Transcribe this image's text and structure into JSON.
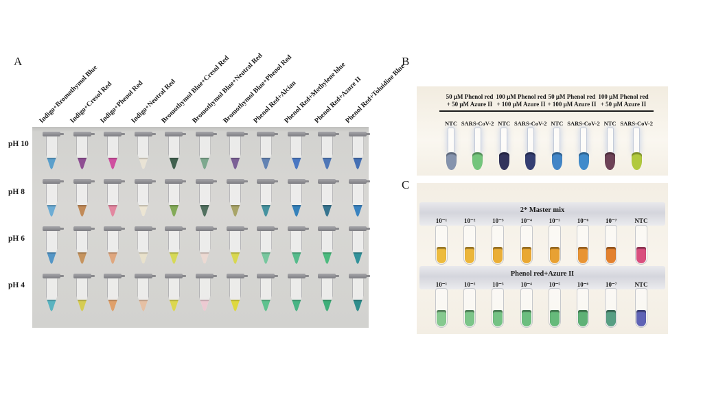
{
  "figure": {
    "panel_a": {
      "letter": "A",
      "column_labels": [
        "Indigo+Bromothymol Blue",
        "Indigo+Cresol Red",
        "Indigo+Phenol Red",
        "Indigo+Neutral Red",
        "Bromothymol Blue+Cresol Red",
        "Bromothymol Blue+Neutral Red",
        "Bromothymol Blue+Phenol Red",
        "Phenol Red+Alcian",
        "Phenol Red+Methylene blue",
        "Phenol Red+Azure II",
        "Phenol Red+Toluidine Blue"
      ],
      "rows": [
        {
          "ph": "pH 10",
          "colors": [
            "#5b9fcb",
            "#8f4f93",
            "#cf4fa0",
            "#e9e3d5",
            "#40604e",
            "#7da88e",
            "#7b6096",
            "#6383b3",
            "#4a77c2",
            "#4f77b7",
            "#4570b4"
          ]
        },
        {
          "ph": "pH 8",
          "colors": [
            "#6dacd4",
            "#c18a58",
            "#e287a0",
            "#ece5d3",
            "#83aa58",
            "#51705f",
            "#a8a468",
            "#46929f",
            "#3581ba",
            "#37748f",
            "#3a83c0"
          ]
        },
        {
          "ph": "pH 6",
          "colors": [
            "#5496c6",
            "#c6945f",
            "#dfa77f",
            "#e8e1cb",
            "#d6d957",
            "#ecd9d2",
            "#d8d750",
            "#77c79e",
            "#55bb8b",
            "#4cba7e",
            "#32929a"
          ]
        },
        {
          "ph": "pH 4",
          "colors": [
            "#5ab3c0",
            "#d5cc52",
            "#dfa06b",
            "#e5c0a4",
            "#dcd74f",
            "#eccad2",
            "#ded83f",
            "#5fc28e",
            "#48b484",
            "#3fae79",
            "#2f8d8c"
          ]
        }
      ]
    },
    "panel_b": {
      "letter": "B",
      "groups": [
        {
          "line1": "50 μM Phenol red",
          "line2": "+ 50 μM Azure II"
        },
        {
          "line1": "100 μM Phenol red",
          "line2": "+ 100 μM Azure II"
        },
        {
          "line1": "50 μM Phenol red",
          "line2": "+ 100 μM Azure II"
        },
        {
          "line1": "100 μM Phenol red",
          "line2": "+ 50 μM Azure II"
        }
      ],
      "tubes": [
        {
          "label": "NTC",
          "color": "#8593ad"
        },
        {
          "label": "SARS-CoV-2",
          "color": "#74c57c"
        },
        {
          "label": "NTC",
          "color": "#32335c"
        },
        {
          "label": "SARS-CoV-2",
          "color": "#343e72"
        },
        {
          "label": "NTC",
          "color": "#4285c6"
        },
        {
          "label": "SARS-CoV-2",
          "color": "#418bcb"
        },
        {
          "label": "NTC",
          "color": "#6d4257"
        },
        {
          "label": "SARS-CoV-2",
          "color": "#b1c93e"
        }
      ]
    },
    "panel_c": {
      "letter": "C",
      "rows": [
        {
          "title": "2* Master mix",
          "tubes": [
            {
              "label": "10⁻¹",
              "color": "#edbb3d"
            },
            {
              "label": "10⁻²",
              "color": "#ecb63a"
            },
            {
              "label": "10⁻³",
              "color": "#eaae36"
            },
            {
              "label": "10⁻⁴",
              "color": "#e9a833"
            },
            {
              "label": "10⁻⁵",
              "color": "#e8a133"
            },
            {
              "label": "10⁻⁶",
              "color": "#e89434"
            },
            {
              "label": "10⁻⁷",
              "color": "#e3812e"
            },
            {
              "label": "NTC",
              "color": "#d94f7e"
            }
          ]
        },
        {
          "title": "Phenol red+Azure II",
          "tubes": [
            {
              "label": "10⁻¹",
              "color": "#86c98f"
            },
            {
              "label": "10⁻²",
              "color": "#7cc589"
            },
            {
              "label": "10⁻³",
              "color": "#74c284"
            },
            {
              "label": "10⁻⁴",
              "color": "#6cbe7f"
            },
            {
              "label": "10⁻⁵",
              "color": "#66ba7b"
            },
            {
              "label": "10⁻⁶",
              "color": "#5eb176"
            },
            {
              "label": "10⁻⁷",
              "color": "#579e83"
            },
            {
              "label": "NTC",
              "color": "#5f63b5"
            }
          ]
        }
      ]
    }
  }
}
